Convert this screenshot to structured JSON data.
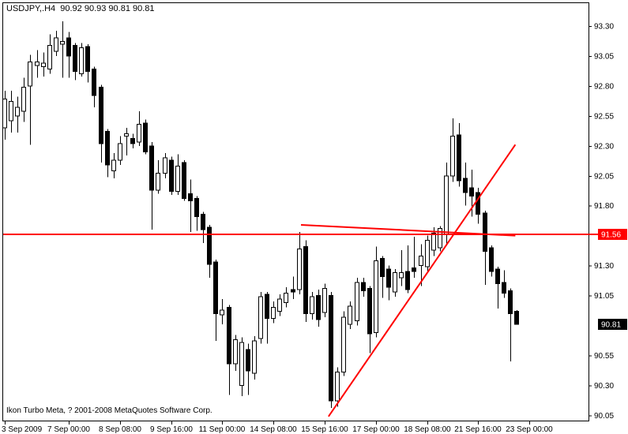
{
  "window": {
    "title": "USDJPY,.H4  90.92 90.93 90.81 90.81",
    "footer": "Ikon Turbo Meta, ? 2001-2008 MetaQuotes Software Corp."
  },
  "quote": {
    "symbol": "USDJPY",
    "timeframe": "H4",
    "open": "90.92",
    "high": "90.93",
    "low": "90.81",
    "close": "90.81"
  },
  "colors": {
    "background": "#ffffff",
    "foreground": "#000000",
    "object_red": "#ff0000",
    "bull_fill": "#ffffff",
    "bear_fill": "#000000",
    "badge_level_bg": "#ff0000",
    "badge_last_bg": "#000000",
    "badge_text": "#ffffff"
  },
  "chart_data": {
    "type": "candlestick",
    "title": "USDJPY H4",
    "ohlc_order": [
      "open",
      "high",
      "low",
      "close"
    ],
    "y_axis": {
      "min": 90.05,
      "max": 93.3,
      "step": 0.25,
      "visible_labels": [
        "93.30",
        "93.05",
        "92.80",
        "92.55",
        "92.30",
        "92.05",
        "91.80",
        "91.30",
        "91.05",
        "90.55",
        "90.30",
        "90.05"
      ]
    },
    "x_axis": {
      "ticks": [
        {
          "label": "3 Sep 2009",
          "bar": 0
        },
        {
          "label": "7 Sep 00:00",
          "bar": 10
        },
        {
          "label": "8 Sep 08:00",
          "bar": 18
        },
        {
          "label": "9 Sep 16:00",
          "bar": 26
        },
        {
          "label": "11 Sep 00:00",
          "bar": 34
        },
        {
          "label": "14 Sep 08:00",
          "bar": 42
        },
        {
          "label": "15 Sep 16:00",
          "bar": 50
        },
        {
          "label": "17 Sep 00:00",
          "bar": 58
        },
        {
          "label": "18 Sep 08:00",
          "bar": 66
        },
        {
          "label": "21 Sep 16:00",
          "bar": 74
        },
        {
          "label": "23 Sep 00:00",
          "bar": 82
        }
      ]
    },
    "candles": [
      [
        92.45,
        92.76,
        92.35,
        92.69
      ],
      [
        92.51,
        92.76,
        92.41,
        92.67
      ],
      [
        92.55,
        92.71,
        92.41,
        92.62
      ],
      [
        92.59,
        92.87,
        92.5,
        92.79
      ],
      [
        92.8,
        93.06,
        92.31,
        93.0
      ],
      [
        92.97,
        93.1,
        92.87,
        93.0
      ],
      [
        92.96,
        93.08,
        92.88,
        92.99
      ],
      [
        92.94,
        93.23,
        92.9,
        93.14
      ],
      [
        93.09,
        93.26,
        93.05,
        93.2
      ],
      [
        93.15,
        93.34,
        92.87,
        93.17
      ],
      [
        93.2,
        93.25,
        92.87,
        93.05
      ],
      [
        93.14,
        93.16,
        92.85,
        92.92
      ],
      [
        92.9,
        93.16,
        92.88,
        93.12
      ],
      [
        93.13,
        93.15,
        92.83,
        92.92
      ],
      [
        92.94,
        92.96,
        92.62,
        92.72
      ],
      [
        92.79,
        92.81,
        92.16,
        92.32
      ],
      [
        92.42,
        92.44,
        92.04,
        92.14
      ],
      [
        92.09,
        92.24,
        92.03,
        92.18
      ],
      [
        92.18,
        92.38,
        92.14,
        92.32
      ],
      [
        92.38,
        92.45,
        92.22,
        92.4
      ],
      [
        92.36,
        92.4,
        92.28,
        92.32
      ],
      [
        92.33,
        92.59,
        92.3,
        92.48
      ],
      [
        92.49,
        92.52,
        92.23,
        92.25
      ],
      [
        92.3,
        92.33,
        91.6,
        91.93
      ],
      [
        91.93,
        92.18,
        91.9,
        92.07
      ],
      [
        92.07,
        92.24,
        92.03,
        92.2
      ],
      [
        92.18,
        92.21,
        91.89,
        91.92
      ],
      [
        91.92,
        92.23,
        91.89,
        92.13
      ],
      [
        92.16,
        92.18,
        91.84,
        91.86
      ],
      [
        91.9,
        92.02,
        91.58,
        91.84
      ],
      [
        91.86,
        91.88,
        91.59,
        91.71
      ],
      [
        91.73,
        91.75,
        91.49,
        91.6
      ],
      [
        91.62,
        91.64,
        91.2,
        91.31
      ],
      [
        91.33,
        91.35,
        90.67,
        90.9
      ],
      [
        90.89,
        91.02,
        90.81,
        90.93
      ],
      [
        90.95,
        90.97,
        90.22,
        90.48
      ],
      [
        90.48,
        90.72,
        90.42,
        90.68
      ],
      [
        90.3,
        90.7,
        90.21,
        90.66
      ],
      [
        90.6,
        90.65,
        90.22,
        90.42
      ],
      [
        90.4,
        90.71,
        90.35,
        90.67
      ],
      [
        90.69,
        91.08,
        90.65,
        91.04
      ],
      [
        91.06,
        91.08,
        90.65,
        90.86
      ],
      [
        90.86,
        91.0,
        90.82,
        90.95
      ],
      [
        90.92,
        91.06,
        90.88,
        91.02
      ],
      [
        90.99,
        91.12,
        90.95,
        91.07
      ],
      [
        91.1,
        91.21,
        91.02,
        91.08
      ],
      [
        91.1,
        91.58,
        91.06,
        91.44
      ],
      [
        91.46,
        91.51,
        90.83,
        90.9
      ],
      [
        90.9,
        91.08,
        90.85,
        91.04
      ],
      [
        91.05,
        91.1,
        90.79,
        90.85
      ],
      [
        90.91,
        91.15,
        90.87,
        91.11
      ],
      [
        91.05,
        91.08,
        90.11,
        90.17
      ],
      [
        90.17,
        90.45,
        90.12,
        90.41
      ],
      [
        90.41,
        90.92,
        90.38,
        90.87
      ],
      [
        90.81,
        91.0,
        90.77,
        90.96
      ],
      [
        90.84,
        91.2,
        90.8,
        91.16
      ],
      [
        91.16,
        91.2,
        91.04,
        91.09
      ],
      [
        91.11,
        91.13,
        90.57,
        90.73
      ],
      [
        90.74,
        91.46,
        90.7,
        91.34
      ],
      [
        91.36,
        91.38,
        91.03,
        91.21
      ],
      [
        91.27,
        91.3,
        91.01,
        91.12
      ],
      [
        91.08,
        91.27,
        91.04,
        91.24
      ],
      [
        91.2,
        91.43,
        91.13,
        91.24
      ],
      [
        91.25,
        91.47,
        91.07,
        91.1
      ],
      [
        91.28,
        91.54,
        91.2,
        91.25
      ],
      [
        91.3,
        91.48,
        91.13,
        91.38
      ],
      [
        91.29,
        91.55,
        91.25,
        91.51
      ],
      [
        91.43,
        91.62,
        91.38,
        91.57
      ],
      [
        91.45,
        91.63,
        91.42,
        91.61
      ],
      [
        91.56,
        92.16,
        91.47,
        92.05
      ],
      [
        92.05,
        92.53,
        92.0,
        92.38
      ],
      [
        92.39,
        92.49,
        91.96,
        92.01
      ],
      [
        92.03,
        92.16,
        91.8,
        91.91
      ],
      [
        91.95,
        92.1,
        91.71,
        91.88
      ],
      [
        91.91,
        91.95,
        91.65,
        91.73
      ],
      [
        91.74,
        91.76,
        91.14,
        91.42
      ],
      [
        91.45,
        91.47,
        91.21,
        91.25
      ],
      [
        91.27,
        91.29,
        90.94,
        91.15
      ],
      [
        91.16,
        91.26,
        91.03,
        91.07
      ],
      [
        91.09,
        91.11,
        90.5,
        90.9
      ],
      [
        90.92,
        90.93,
        90.81,
        90.81
      ]
    ],
    "price_markers": [
      {
        "label": "91.56",
        "price": 91.56,
        "bg": "#ff0000"
      },
      {
        "label": "90.81",
        "price": 90.81,
        "bg": "#000000"
      }
    ],
    "lines": [
      {
        "id": "horizontal-level",
        "type": "horizontal",
        "price": 91.56,
        "color": "#ff0000",
        "width": 2
      },
      {
        "id": "trendline-ascending",
        "type": "segment",
        "from": {
          "bar": 50.6,
          "price": 90.04
        },
        "to": {
          "bar": 79.8,
          "price": 92.31
        },
        "color": "#ff0000",
        "width": 2
      },
      {
        "id": "trendline-descending",
        "type": "segment",
        "from": {
          "bar": 46.3,
          "price": 91.64
        },
        "to": {
          "bar": 79.8,
          "price": 91.55
        },
        "color": "#ff0000",
        "width": 2
      }
    ],
    "legend": null,
    "grid": false
  }
}
